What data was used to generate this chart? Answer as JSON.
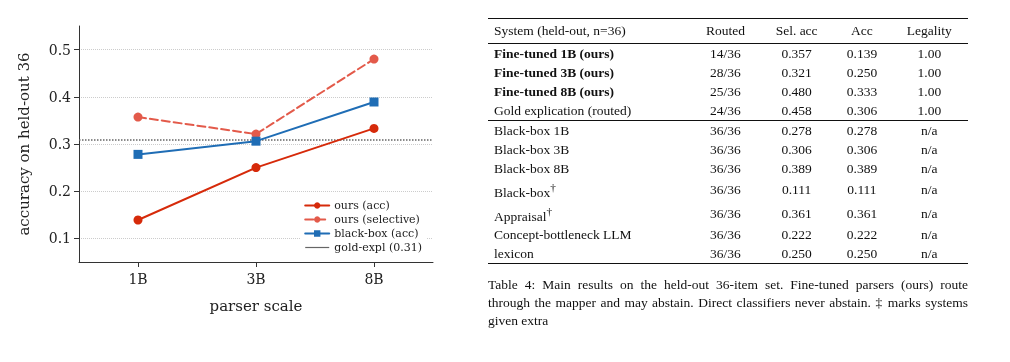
{
  "chart_data": [
    {
      "type": "line",
      "xlabel": "parser scale",
      "ylabel": "accuracy on held-out 36",
      "categories": [
        "1B",
        "3B",
        "8B"
      ],
      "series": [
        {
          "name": "ours (acc)",
          "color": "#d62a0a",
          "values": [
            0.139,
            0.25,
            0.333
          ],
          "marker": "circle",
          "line_style": "solid"
        },
        {
          "name": "ours (selective)",
          "color": "#e35a4a",
          "values": [
            0.357,
            0.321,
            0.48
          ],
          "marker": "circle",
          "line_style": "dashed"
        },
        {
          "name": "black-box (acc)",
          "color": "#1f6db5",
          "values": [
            0.278,
            0.306,
            0.389
          ],
          "marker": "square",
          "line_style": "solid"
        }
      ],
      "ref_lines": [
        {
          "axis": "y",
          "value": 0.306,
          "label": "gold-expl (0.31)",
          "color": "#666666",
          "line_style": "dotted"
        }
      ],
      "ylim": [
        0.05,
        0.55
      ],
      "yticks": [
        0.1,
        0.2,
        0.3,
        0.4,
        0.5
      ],
      "grid": "y",
      "legend": "bottom right"
    },
    {
      "type": "other",
      "annotations": [
        "System (held-out, n=36)",
        "Routed",
        "Sel. acc",
        "Acc",
        "Legality",
        "Fine-tuned 1B (ours)",
        "14/36",
        "0.357",
        "0.139",
        "1.00",
        "Fine-tuned 3B (ours)",
        "28/36",
        "0.321",
        "0.250",
        "1.00",
        "Fine-tuned 8B (ours)",
        "25/36",
        "0.480",
        "0.333",
        "1.00",
        "Gold explication (routed)",
        "24/36",
        "0.458",
        "0.306",
        "1.00",
        "Black-box 1B",
        "36/36",
        "0.278",
        "0.278",
        "n/a",
        "Black-box 3B",
        "36/36",
        "0.306",
        "0.306",
        "n/a",
        "Black-box 8B",
        "36/36",
        "0.389",
        "0.389",
        "n/a",
        "Black-box$^{†}$",
        "36/36",
        "0.111",
        "0.111",
        "n/a",
        "Appraisal$^{†}$",
        "36/36",
        "0.361",
        "0.361",
        "n/a",
        "Concept-bottleneck LLM",
        "36/36",
        "0.222",
        "0.222",
        "n/a",
        "lexicon",
        "36/36",
        "0.250",
        "0.250",
        "n/a",
        "Table 4: Main results on the held-out 36-item set. Fine-tuned parsers (ours) route through the mapper and may abstain. Direct classifiers never abstain. ‡ marks systems given extra"
      ]
    }
  ]
}
